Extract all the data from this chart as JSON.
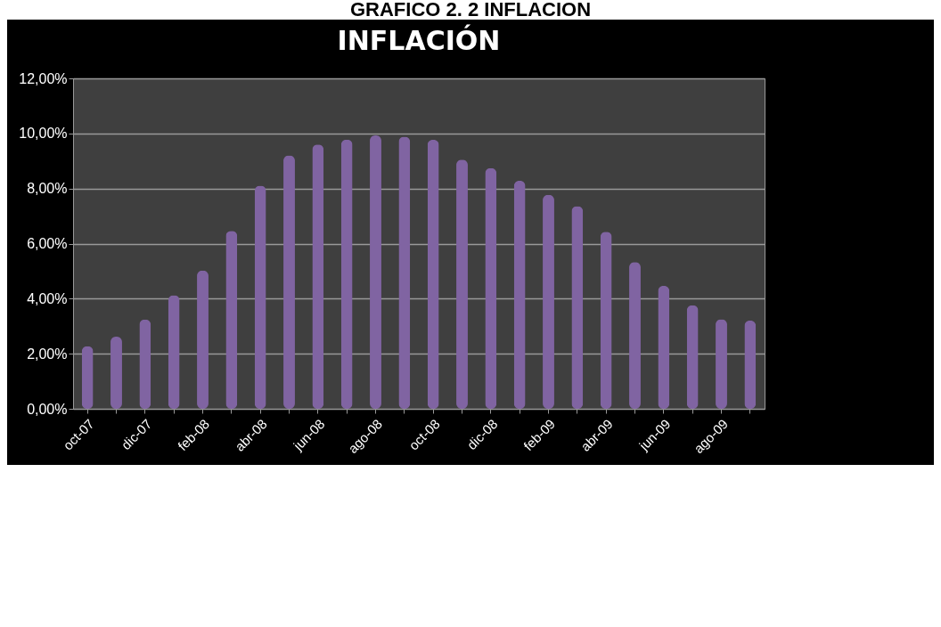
{
  "chart_data": {
    "type": "bar",
    "title": "INFLACIÓN",
    "annotations": [
      "GRAFICO 2. 2 INFLACION"
    ],
    "categories": [
      "oct-07",
      null,
      "dic-07",
      null,
      "feb-08",
      null,
      "abr-08",
      null,
      "jun-08",
      null,
      "ago-08",
      null,
      "oct-08",
      null,
      "dic-08",
      null,
      "feb-09",
      null,
      "abr-09",
      null,
      "jun-09",
      null,
      "ago-09",
      null
    ],
    "values": [
      2.27,
      2.62,
      3.24,
      4.12,
      5.02,
      6.46,
      8.1,
      9.2,
      9.6,
      9.78,
      9.93,
      9.88,
      9.77,
      9.05,
      8.74,
      8.28,
      7.77,
      7.36,
      6.43,
      5.33,
      4.46,
      3.76,
      3.25,
      3.2
    ],
    "color": "#8064a2",
    "ylim": [
      0,
      12
    ],
    "yticks": [
      {
        "value": 0,
        "label": "0,00%"
      },
      {
        "value": 2,
        "label": "2,00%"
      },
      {
        "value": 4,
        "label": "4,00%"
      },
      {
        "value": 6,
        "label": "6,00%"
      },
      {
        "value": 8,
        "label": "8,00%"
      },
      {
        "value": 10,
        "label": "10,00%"
      },
      {
        "value": 12,
        "label": "12,00%"
      }
    ],
    "grid": true
  }
}
